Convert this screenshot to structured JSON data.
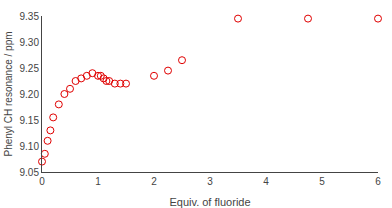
{
  "chart_data": {
    "type": "scatter",
    "x": [
      0.0,
      0.05,
      0.1,
      0.15,
      0.2,
      0.3,
      0.4,
      0.5,
      0.6,
      0.7,
      0.8,
      0.9,
      1.0,
      1.05,
      1.1,
      1.15,
      1.2,
      1.3,
      1.4,
      1.5,
      2.0,
      2.25,
      2.5,
      3.5,
      4.75,
      6.0
    ],
    "values": [
      9.07,
      9.085,
      9.11,
      9.13,
      9.155,
      9.18,
      9.2,
      9.21,
      9.225,
      9.23,
      9.235,
      9.24,
      9.235,
      9.235,
      9.23,
      9.225,
      9.225,
      9.22,
      9.22,
      9.22,
      9.235,
      9.245,
      9.265,
      9.345,
      9.345,
      9.345
    ],
    "color": "#e00000",
    "marker": "circle-open",
    "xlabel": "Equiv. of fluoride",
    "ylabel": "Phenyl CH resonance / ppm",
    "xlim": [
      0,
      6
    ],
    "ylim": [
      9.05,
      9.35
    ],
    "xticks": [
      0,
      1,
      2,
      3,
      4,
      5,
      6
    ],
    "yticks": [
      9.05,
      {
        "value": 9.1,
        "label": "9.10"
      },
      9.15,
      {
        "value": 9.2,
        "label": "9.20"
      },
      9.25,
      {
        "value": 9.3,
        "label": "9.30"
      },
      9.35
    ],
    "grid": false
  }
}
